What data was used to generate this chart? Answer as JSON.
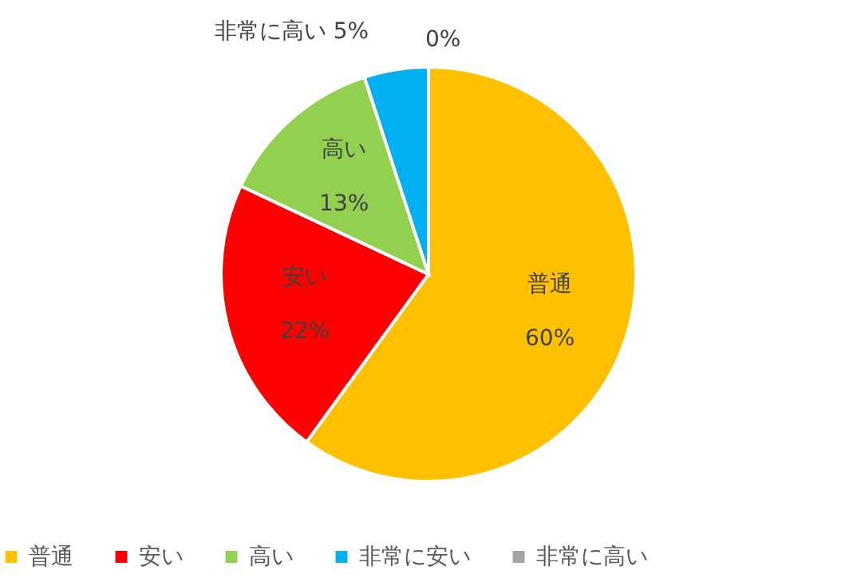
{
  "chart_data": {
    "type": "pie",
    "categories": [
      "普通",
      "安い",
      "高い",
      "非常に安い",
      "非常に高い"
    ],
    "values": [
      60,
      22,
      13,
      5,
      0
    ],
    "colors": [
      "#ffc000",
      "#ff0000",
      "#92d050",
      "#00b0f0",
      "#a5a5a5"
    ],
    "value_labels": [
      "60%",
      "22%",
      "13%",
      "非常に高い 5%",
      "0%"
    ],
    "legend": "bottom"
  }
}
